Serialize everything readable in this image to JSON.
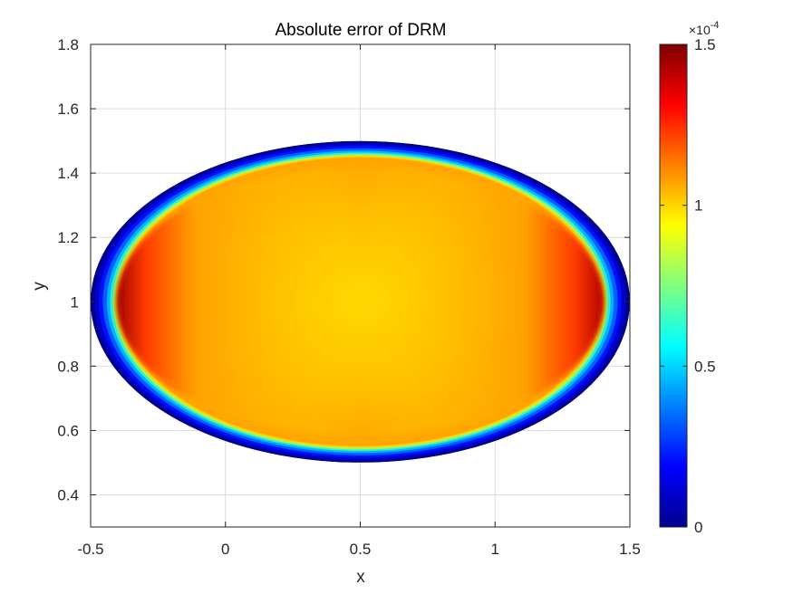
{
  "chart_data": {
    "type": "heatmap",
    "title": "Absolute error of DRM",
    "xlabel": "x",
    "ylabel": "y",
    "xlim": [
      -0.5,
      1.5
    ],
    "ylim": [
      0.3,
      1.8
    ],
    "xticks": [
      -0.5,
      0,
      0.5,
      1,
      1.5
    ],
    "xtick_labels": [
      "-0.5",
      "0",
      "0.5",
      "1",
      "1.5"
    ],
    "yticks": [
      0.4,
      0.6,
      0.8,
      1,
      1.2,
      1.4,
      1.6,
      1.8
    ],
    "ytick_labels": [
      "0.4",
      "0.6",
      "0.8",
      "1",
      "1.2",
      "1.4",
      "1.6",
      "1.8"
    ],
    "grid": true,
    "colormap": "jet",
    "domain": {
      "shape": "ellipse",
      "center": [
        0.5,
        1.0
      ],
      "semi_axis_x": 1.0,
      "semi_axis_y": 0.5
    },
    "field_description": "error near 0 at boundary, about 1.0e-4 to 1.2e-4 in interior, peaks near 1.45e-4 at left and right ends",
    "center_value": 0.000105,
    "interior_edge_value": 0.00012,
    "peak_value": 0.000145,
    "colorbar": {
      "clim": [
        0,
        1.5
      ],
      "ticks": [
        0,
        0.5,
        1,
        1.5
      ],
      "tick_labels": [
        "0",
        "0.5",
        "1",
        "1.5"
      ],
      "exponent_label": "×10",
      "exponent_power": "-4"
    }
  }
}
